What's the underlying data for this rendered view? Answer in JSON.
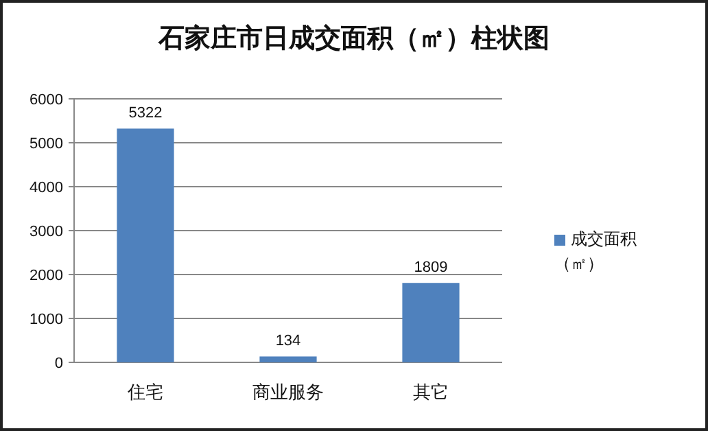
{
  "chart_data": {
    "type": "bar",
    "title": "石家庄市日成交面积（㎡）柱状图",
    "categories": [
      "住宅",
      "商业服务",
      "其它"
    ],
    "series": [
      {
        "name": "成交面积（㎡）",
        "color": "#4f81bd",
        "values": [
          5322,
          134,
          1809
        ]
      }
    ],
    "ylim": [
      0,
      6000
    ],
    "yticks": [
      0,
      1000,
      2000,
      3000,
      4000,
      5000,
      6000
    ],
    "grid": "y",
    "legend": "right",
    "data_labels": true
  }
}
